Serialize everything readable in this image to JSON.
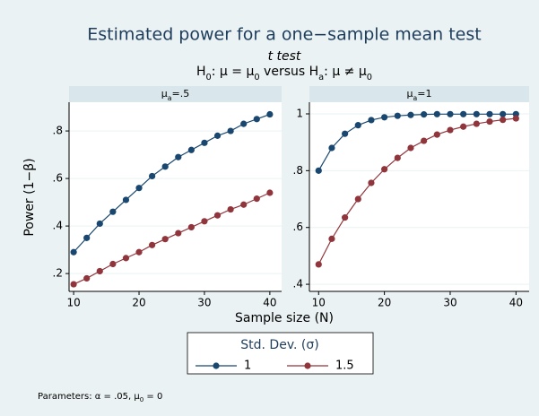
{
  "title": "Estimated power for a one−sample mean test",
  "subtitle": "t test",
  "hypothesis": [
    {
      "text": "H"
    },
    {
      "sub": "0"
    },
    {
      "text": ": μ = μ"
    },
    {
      "sub": "0"
    },
    {
      "text": "  versus  H"
    },
    {
      "sub": "a"
    },
    {
      "text": ": μ ≠ μ"
    },
    {
      "sub": "0"
    }
  ],
  "ylabel": "Power (1−β)",
  "xlabel": "Sample size (N)",
  "legend": {
    "title": "Std. Dev. (σ)"
  },
  "note": [
    {
      "text": "Parameters: α = .05, μ"
    },
    {
      "sub": "0"
    },
    {
      "text": " = 0"
    }
  ],
  "chart_data": [
    {
      "type": "line",
      "title": [
        {
          "text": "μ"
        },
        {
          "sub": "a"
        },
        {
          "text": "=.5"
        }
      ],
      "x": [
        10,
        12,
        14,
        16,
        18,
        20,
        22,
        24,
        26,
        28,
        30,
        32,
        34,
        36,
        38,
        40
      ],
      "series": [
        {
          "name": "1",
          "color": "#1a476f",
          "values": [
            0.29,
            0.35,
            0.41,
            0.46,
            0.51,
            0.56,
            0.61,
            0.65,
            0.69,
            0.72,
            0.75,
            0.78,
            0.8,
            0.83,
            0.85,
            0.87
          ]
        },
        {
          "name": "1.5",
          "color": "#90353b",
          "values": [
            0.155,
            0.18,
            0.21,
            0.24,
            0.265,
            0.29,
            0.32,
            0.345,
            0.37,
            0.395,
            0.42,
            0.445,
            0.47,
            0.49,
            0.515,
            0.54
          ]
        }
      ],
      "xlim": [
        9.3,
        41.8
      ],
      "xticks": [
        10,
        20,
        30,
        40
      ],
      "ylim": [
        0.125,
        0.921
      ],
      "yticks": [
        {
          "value": 0.2,
          "label": ".2"
        },
        {
          "value": 0.4,
          "label": ".4"
        },
        {
          "value": 0.6,
          "label": ".6"
        },
        {
          "value": 0.8,
          "label": ".8"
        }
      ],
      "grid": true
    },
    {
      "type": "line",
      "title": [
        {
          "text": "μ"
        },
        {
          "sub": "a"
        },
        {
          "text": "=1"
        }
      ],
      "x": [
        10,
        12,
        14,
        16,
        18,
        20,
        22,
        24,
        26,
        28,
        30,
        32,
        34,
        36,
        38,
        40
      ],
      "series": [
        {
          "name": "1",
          "color": "#1a476f",
          "values": [
            0.8,
            0.88,
            0.93,
            0.96,
            0.978,
            0.988,
            0.993,
            0.996,
            0.998,
            0.999,
            0.999,
            0.999,
            0.999,
            0.999,
            0.999,
            0.999
          ]
        },
        {
          "name": "1.5",
          "color": "#90353b",
          "values": [
            0.47,
            0.56,
            0.635,
            0.7,
            0.757,
            0.805,
            0.845,
            0.88,
            0.905,
            0.927,
            0.943,
            0.955,
            0.965,
            0.973,
            0.979,
            0.984
          ]
        }
      ],
      "xlim": [
        8.6,
        42.0
      ],
      "xticks": [
        10,
        20,
        30,
        40
      ],
      "ylim": [
        0.375,
        1.041
      ],
      "yticks": [
        {
          "value": 0.4,
          "label": ".4"
        },
        {
          "value": 0.6,
          "label": ".6"
        },
        {
          "value": 0.8,
          "label": ".8"
        },
        1
      ],
      "grid": true
    }
  ]
}
